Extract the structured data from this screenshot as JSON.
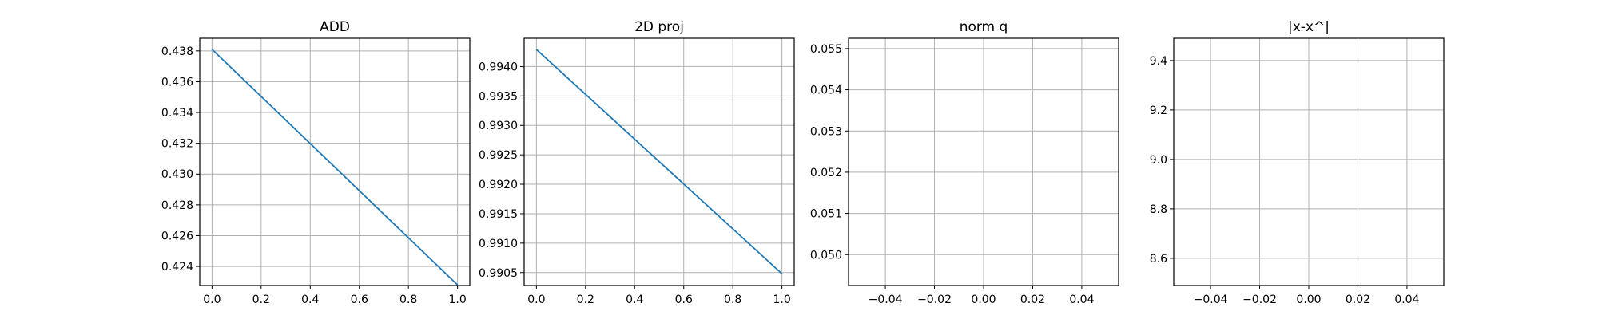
{
  "figure": {
    "background": "#ffffff",
    "grid_color": "#b0b0b0",
    "line_color": "#1f77b4"
  },
  "chart_data": [
    {
      "type": "line",
      "title": "ADD",
      "xlabel": "",
      "ylabel": "",
      "grid": true,
      "xlim": [
        -0.05,
        1.05
      ],
      "ylim": [
        0.42276,
        0.43882
      ],
      "xticks": [
        "0.0",
        "0.2",
        "0.4",
        "0.6",
        "0.8",
        "1.0"
      ],
      "yticks": [
        "0.424",
        "0.426",
        "0.428",
        "0.430",
        "0.432",
        "0.434",
        "0.436",
        "0.438"
      ],
      "series": [
        {
          "x": [
            0,
            1
          ],
          "y": [
            0.4381,
            0.4228
          ]
        }
      ]
    },
    {
      "type": "line",
      "title": "2D proj",
      "xlabel": "",
      "ylabel": "",
      "grid": true,
      "xlim": [
        -0.05,
        1.05
      ],
      "ylim": [
        0.99028,
        0.99448
      ],
      "xticks": [
        "0.0",
        "0.2",
        "0.4",
        "0.6",
        "0.8",
        "1.0"
      ],
      "yticks": [
        "0.9905",
        "0.9910",
        "0.9915",
        "0.9920",
        "0.9925",
        "0.9930",
        "0.9935",
        "0.9940"
      ],
      "series": [
        {
          "x": [
            0,
            1
          ],
          "y": [
            0.99429,
            0.99048
          ]
        }
      ]
    },
    {
      "type": "line",
      "title": "norm q",
      "xlabel": "",
      "ylabel": "",
      "grid": true,
      "xlim": [
        -0.055,
        0.055
      ],
      "ylim": [
        0.04925,
        0.05525
      ],
      "xticks": [
        "−0.04",
        "−0.02",
        "0.00",
        "0.02",
        "0.04"
      ],
      "yticks": [
        "0.050",
        "0.051",
        "0.052",
        "0.053",
        "0.054",
        "0.055"
      ],
      "series": []
    },
    {
      "type": "line",
      "title": "|x-x^|",
      "xlabel": "",
      "ylabel": "",
      "grid": true,
      "xlim": [
        -0.055,
        0.055
      ],
      "ylim": [
        8.49,
        9.49
      ],
      "xticks": [
        "−0.04",
        "−0.02",
        "0.00",
        "0.02",
        "0.04"
      ],
      "yticks": [
        "8.6",
        "8.8",
        "9.0",
        "9.2",
        "9.4"
      ],
      "series": []
    }
  ]
}
